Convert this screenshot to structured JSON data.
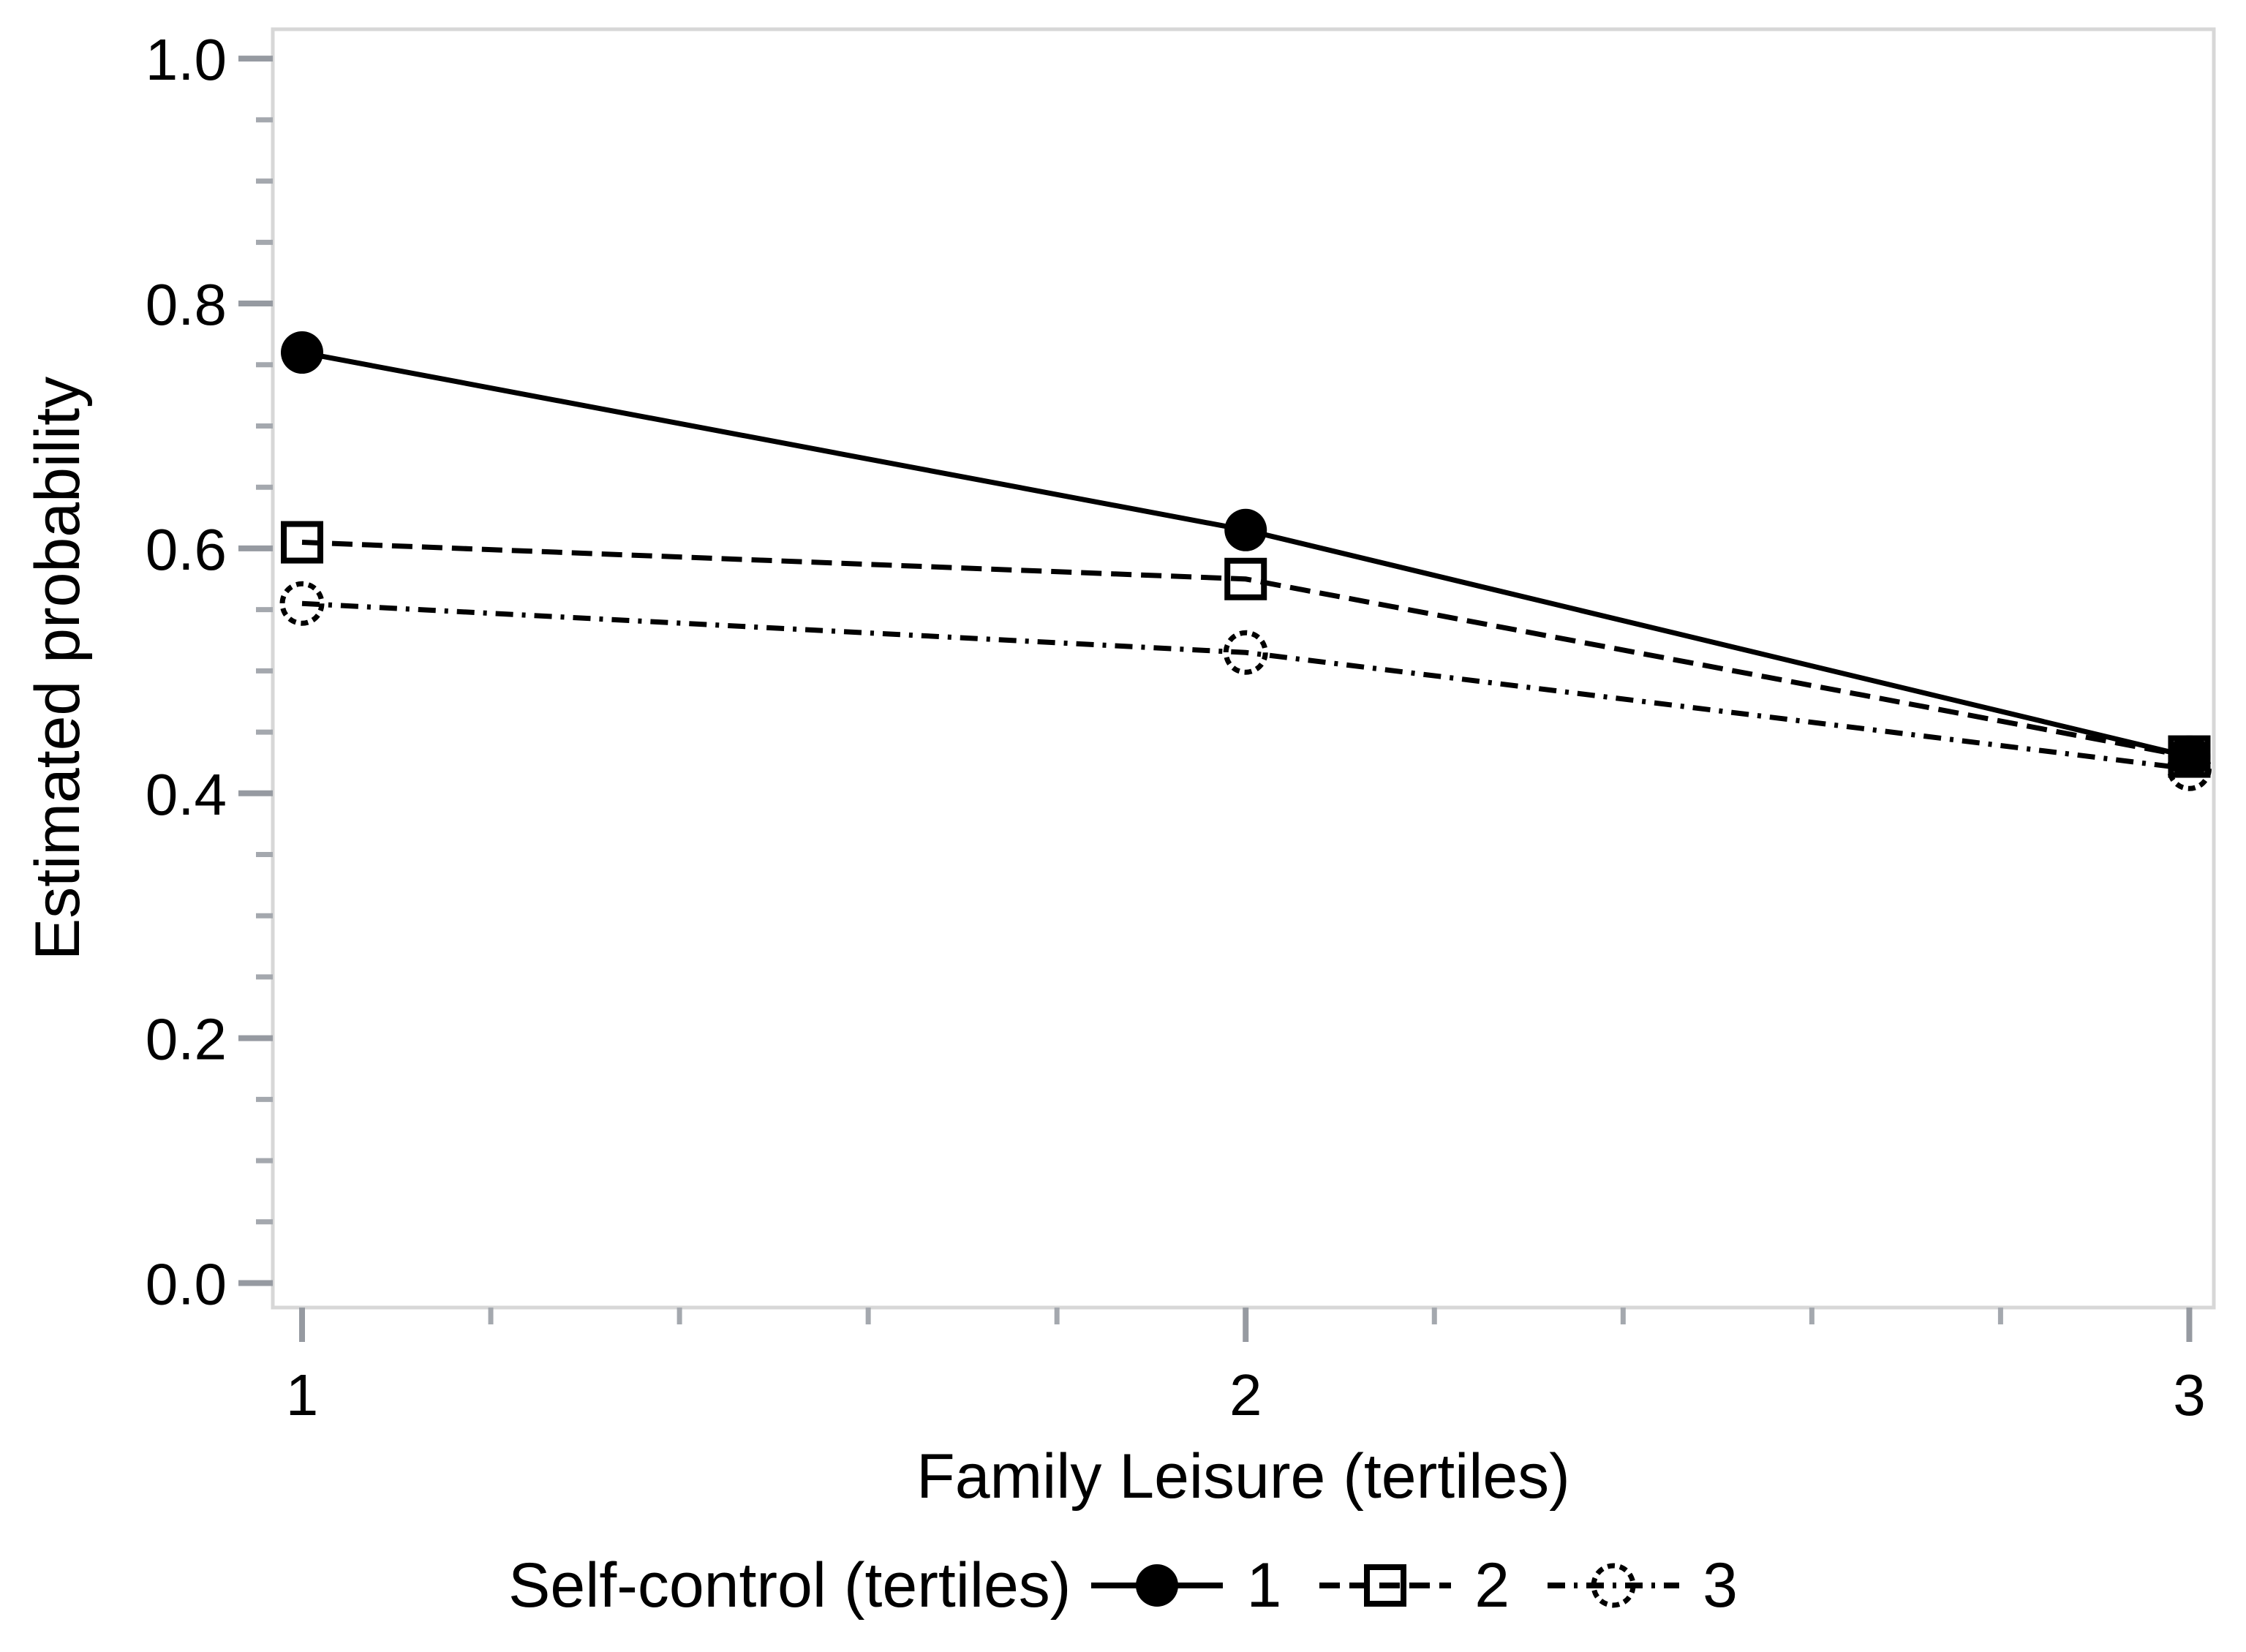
{
  "chart_data": {
    "type": "line",
    "title": "",
    "xlabel": "Family Leisure (tertiles)",
    "ylabel": "Estimated probability",
    "legend_title": "Self-control (tertiles)",
    "legend_position": "bottom-center",
    "grid": "off",
    "x": [
      1,
      2,
      3
    ],
    "series": [
      {
        "name": "1",
        "marker": "filled-circle",
        "line_style": "solid",
        "values": [
          0.76,
          0.615,
          0.43
        ]
      },
      {
        "name": "2",
        "marker": "open-square",
        "line_style": "dashed",
        "values": [
          0.605,
          0.575,
          0.43
        ]
      },
      {
        "name": "3",
        "marker": "open-circle",
        "line_style": "dash-dot",
        "values": [
          0.555,
          0.515,
          0.42
        ]
      }
    ],
    "x_major_ticks": [
      1,
      2,
      3
    ],
    "x_tick_labels": [
      "1",
      "2",
      "3"
    ],
    "x_minor_tick_step": 0.2,
    "y_major_ticks": [
      0.0,
      0.2,
      0.4,
      0.6,
      0.8,
      1.0
    ],
    "y_tick_labels": [
      "0.0",
      "0.2",
      "0.4",
      "0.6",
      "0.8",
      "1.0"
    ],
    "y_minor_tick_step": 0.05,
    "xlim": [
      0.969,
      3.026
    ],
    "ylim": [
      -0.02,
      1.024
    ],
    "colors": {
      "series": "#000000",
      "frame": "#d7d7d7",
      "major_tick": "#969aa1",
      "minor_tick": "#a4a8ae",
      "text": "#000000",
      "background": "#ffffff"
    }
  }
}
